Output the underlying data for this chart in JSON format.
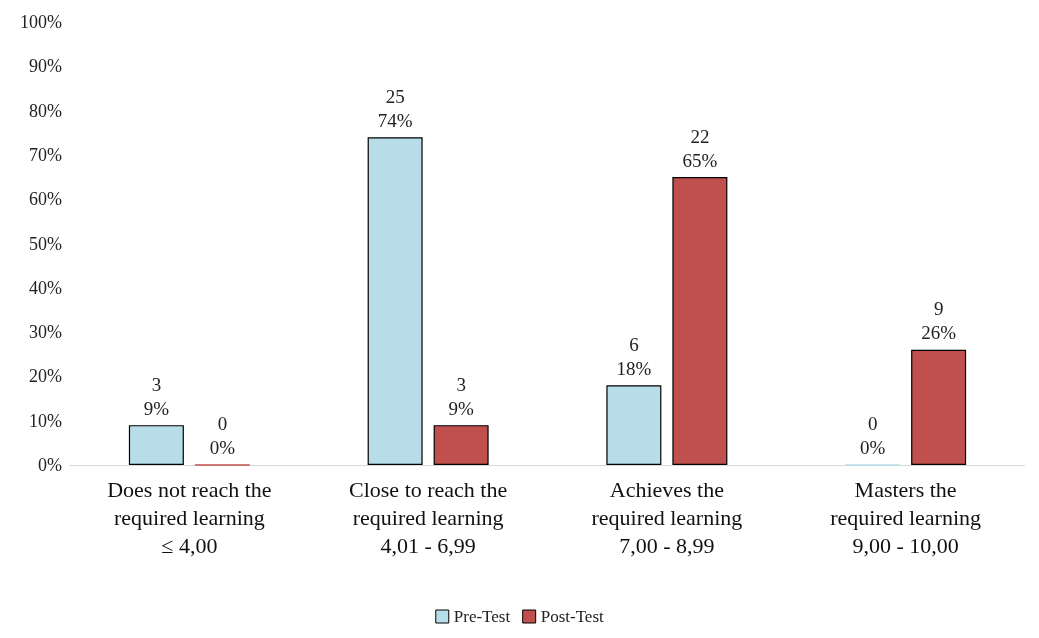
{
  "chart_data": {
    "type": "bar",
    "categories": [
      "Does not reach the\nrequired learning\n≤ 4,00",
      "Close to reach the\nrequired learning\n4,01 - 6,99",
      "Achieves the\nrequired learning\n7,00 - 8,99",
      "Masters the\nrequired learning\n9,00 - 10,00"
    ],
    "series": [
      {
        "name": "Pre-Test",
        "color": "#b7dde8",
        "values": [
          9,
          74,
          18,
          0
        ],
        "value_labels": [
          "3\n9%",
          "25\n74%",
          "6\n18%",
          "0\n0%"
        ]
      },
      {
        "name": "Post-Test",
        "color": "#c0504d",
        "values": [
          0,
          9,
          65,
          26
        ],
        "value_labels": [
          "0\n0%",
          "3\n9%",
          "22\n65%",
          "9\n26%"
        ]
      }
    ],
    "ylim": [
      0,
      100
    ],
    "yticks": [
      {
        "value": 0,
        "label": "0%"
      },
      {
        "value": 10,
        "label": "10%"
      },
      {
        "value": 20,
        "label": "20%"
      },
      {
        "value": 30,
        "label": "30%"
      },
      {
        "value": 40,
        "label": "40%"
      },
      {
        "value": 50,
        "label": "50%"
      },
      {
        "value": 60,
        "label": "60%"
      },
      {
        "value": 70,
        "label": "70%"
      },
      {
        "value": 80,
        "label": "80%"
      },
      {
        "value": 90,
        "label": "90%"
      },
      {
        "value": 100,
        "label": "100%"
      }
    ],
    "grid": false,
    "legend": "bottom"
  }
}
